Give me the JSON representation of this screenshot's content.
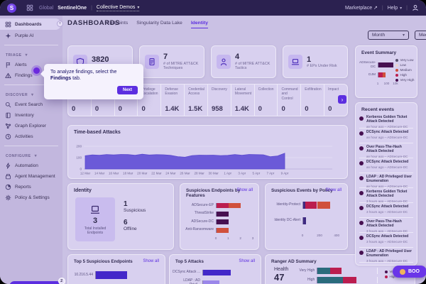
{
  "topbar": {
    "brand_initial": "S",
    "global_label": "Global",
    "account": "SentinelOne",
    "scope": "Collective Demos",
    "marketplace": "Marketplace",
    "help": "Help"
  },
  "sidebar": {
    "primary": [
      {
        "label": "Dashboards",
        "icon": "grid",
        "active": true
      },
      {
        "label": "Purple AI",
        "icon": "sparkle",
        "active": false
      }
    ],
    "sections": [
      {
        "title": "TRIAGE",
        "items": [
          {
            "label": "Alerts",
            "icon": "flag",
            "beacon": false
          },
          {
            "label": "Findings",
            "icon": "warning",
            "beacon": true
          }
        ]
      },
      {
        "title": "DISCOVER",
        "items": [
          {
            "label": "Event Search",
            "icon": "search",
            "beacon": false
          },
          {
            "label": "Inventory",
            "icon": "book",
            "beacon": false
          },
          {
            "label": "Graph Explorer",
            "icon": "graph",
            "beacon": false
          },
          {
            "label": "Activities",
            "icon": "clock",
            "beacon": false
          }
        ]
      },
      {
        "title": "CONFIGURE",
        "items": [
          {
            "label": "Automation",
            "icon": "bolt",
            "beacon": false
          },
          {
            "label": "Agent Management",
            "icon": "layers",
            "beacon": false
          },
          {
            "label": "Reports",
            "icon": "pie",
            "beacon": false
          },
          {
            "label": "Policy & Settings",
            "icon": "gear",
            "beacon": false
          }
        ]
      }
    ],
    "product_tour": {
      "label": "PRODUCT TOUR",
      "badge": "2"
    }
  },
  "header": {
    "title": "DASHBOARDS",
    "tabs": [
      {
        "label": "Endpoints"
      },
      {
        "label": "Singularity Data Lake"
      },
      {
        "label": "Identity"
      }
    ],
    "period_filter": "Month",
    "partial_filter": "Med"
  },
  "tour_tooltip": {
    "text": "To analyze findings, select the ",
    "bold": "Findings",
    "suffix": " tab.",
    "next": "Next"
  },
  "kpis": [
    {
      "value": "3820",
      "label": "# of Detections",
      "icon": "shield"
    },
    {
      "value": "7",
      "label": "# of MITRE ATT&CK Techniques",
      "icon": "document"
    },
    {
      "value": "4",
      "label": "# of MITRE ATT&CK Tactics",
      "icon": "person"
    },
    {
      "value": "1",
      "label": "# EPs Under Risk",
      "icon": "laptop"
    }
  ],
  "tactics_strip": {
    "columns": [
      {
        "label": "",
        "value": "0"
      },
      {
        "label": "",
        "value": "0"
      },
      {
        "label": "",
        "value": "0"
      },
      {
        "label": "Privilege Escalation",
        "value": "0"
      },
      {
        "label": "Defense Evasion",
        "value": "1.4K"
      },
      {
        "label": "Credential Access",
        "value": "1.5K"
      },
      {
        "label": "Discovery",
        "value": "958"
      },
      {
        "label": "Lateral Movement",
        "value": "1.4K"
      },
      {
        "label": "Collection",
        "value": "0"
      },
      {
        "label": "Command and Control",
        "value": "0"
      },
      {
        "label": "Exfiltration",
        "value": "0"
      },
      {
        "label": "Impact",
        "value": "0"
      }
    ]
  },
  "identity_panel": {
    "title": "Identity",
    "total_value": "3",
    "total_label": "Total Installed Endpoints",
    "stats": [
      {
        "value": "1",
        "label": "Suspicious"
      },
      {
        "value": "6",
        "label": "Offline"
      }
    ]
  },
  "panels": {
    "event_summary_title": "Event Summary",
    "recent_events_title": "Recent events",
    "time_title": "Time-based Attacks",
    "features_title": "Suspicious Endpoints by Features",
    "policy_title": "Suspicious Events by Policy",
    "top_endpoints_title": "Top 5 Suspicious Endpoints",
    "top_attacks_title": "Top 5 Attacks",
    "ranger_title": "Ranger AD Summary",
    "show_all": "Show all"
  },
  "ranger": {
    "health_label": "Health",
    "health_value": "47"
  },
  "recent_events": [
    {
      "title": "Kerberos Golden Ticket Attack Detected",
      "meta": "an hour ago – ADSecure-DC"
    },
    {
      "title": "DCSync Attack Detected",
      "meta": "an hour ago – ADSecure-DC"
    },
    {
      "title": "Over Pass-The-Hash Attack Detected",
      "meta": "an hour ago – ADSecure-DC"
    },
    {
      "title": "DCSync Attack Detected",
      "meta": "an hour ago – ADSecure-DC"
    },
    {
      "title": "LDAP : AD Privileged User Enumeration",
      "meta": "an hour ago – ADSecure-DC"
    },
    {
      "title": "Kerberos Golden Ticket Attack Detected",
      "meta": "3 hours ago – ADSecure-DC"
    },
    {
      "title": "DCSync Attack Detected",
      "meta": "3 hours ago – ADSecure-DC"
    },
    {
      "title": "Over Pass-The-Hash Attack Detected",
      "meta": "3 hours ago – ADSecure-DC"
    },
    {
      "title": "DCSync Attack Detected",
      "meta": "3 hours ago – ADSecure-DC"
    },
    {
      "title": "LDAP : AD Privileged User Enumeration",
      "meta": "3 hours ago – ADSecure-DC"
    }
  ],
  "floating_button": {
    "label": "BOO",
    "icon": "clap-hands"
  },
  "colors": {
    "accent": "#5c2ee0",
    "topbar": "#2b2150",
    "card": "#d8d0ef",
    "crimson": "#bb1d4f",
    "orange_red": "#d0503c",
    "dark_maroon": "#471051",
    "teal": "#2a6b7c",
    "area_purple": "#6553d6"
  },
  "chart_data": [
    {
      "type": "bar",
      "title": "Event Summary",
      "orientation": "horizontal",
      "x_scale": "log",
      "x_ticks": [
        "1",
        "100",
        "10k"
      ],
      "x_max": 10000,
      "legend": [
        {
          "label": "Very Low",
          "color": "#57506e"
        },
        {
          "label": "Low",
          "color": "#e9d2cf"
        },
        {
          "label": "Medium",
          "color": "#d0503c"
        },
        {
          "label": "High",
          "color": "#bb1d4f"
        },
        {
          "label": "Very High",
          "color": "#471051"
        }
      ],
      "rows": [
        {
          "category": "ADSecure-DC",
          "segments": [
            {
              "label": "Very High",
              "value": 3500,
              "color": "#471051"
            }
          ]
        },
        {
          "category": "DJM",
          "segments": [
            {
              "label": "High",
              "value": 12,
              "color": "#bb1d4f"
            },
            {
              "label": "Medium",
              "value": 28,
              "color": "#d0503c"
            }
          ]
        }
      ]
    },
    {
      "type": "area",
      "title": "Time-based Attacks",
      "color": "#6553d6",
      "ylim": [
        0,
        200
      ],
      "y_ticks": [
        0,
        100,
        200
      ],
      "x_tick_labels": [
        "12 Mar",
        "14 Mar",
        "16 Mar",
        "18 Mar",
        "20 Mar",
        "22 Mar",
        "24 Mar",
        "26 Mar",
        "28 Mar",
        "30 Mar",
        "1 Apr",
        "3 Apr",
        "5 Apr",
        "7 Apr",
        "9 Apr"
      ],
      "values": [
        116,
        124,
        121,
        127,
        124,
        128,
        127,
        121,
        130,
        123,
        126,
        125,
        120,
        109,
        104,
        118,
        122,
        121,
        122,
        118,
        120,
        127,
        121,
        128,
        126,
        125,
        108,
        115,
        139
      ]
    },
    {
      "type": "bar",
      "title": "Suspicious Endpoints by Features",
      "orientation": "horizontal",
      "x_ticks": [
        "0",
        "1",
        "2",
        "3"
      ],
      "x_max": 3,
      "rows": [
        {
          "category": "ADSecure-EP",
          "segments": [
            {
              "value": 1,
              "color": "#bb1d4f"
            },
            {
              "value": 1,
              "color": "#d0503c"
            }
          ]
        },
        {
          "category": "ThreatStrike",
          "segments": [
            {
              "value": 1,
              "color": "#471051"
            }
          ]
        },
        {
          "category": "ADSecure-DC",
          "segments": [
            {
              "value": 1,
              "color": "#471051"
            }
          ]
        },
        {
          "category": "Anti-Ransomware",
          "segments": [
            {
              "value": 1,
              "color": "#d0503c"
            }
          ]
        }
      ]
    },
    {
      "type": "bar",
      "title": "Suspicious Events by Policy",
      "orientation": "horizontal",
      "x_ticks": [
        "0",
        "200",
        "400"
      ],
      "x_max": 440,
      "rows": [
        {
          "category": "Identity-Protect",
          "segments": [
            {
              "value": 25,
              "color": "#3f2a82"
            },
            {
              "value": 140,
              "color": "#bb1d4f"
            },
            {
              "value": 155,
              "color": "#d0503c"
            }
          ]
        },
        {
          "category": "Identity DC-Alert",
          "segments": [
            {
              "value": 30,
              "color": "#3f2a82"
            }
          ]
        }
      ]
    },
    {
      "type": "bar",
      "title": "Top 5 Suspicious Endpoints",
      "orientation": "horizontal",
      "x_max": 2,
      "rows": [
        {
          "category": "10.216.5.44",
          "segments": [
            {
              "value": 1,
              "color": "#4328c9"
            }
          ]
        }
      ]
    },
    {
      "type": "bar",
      "title": "Top 5 Attacks",
      "orientation": "horizontal",
      "x_max": 100,
      "rows": [
        {
          "category": "DCSync Attack ...",
          "segments": [
            {
              "value": 55,
              "color": "#4328c9"
            }
          ]
        },
        {
          "category": "LDAP : AD Privil...",
          "segments": [
            {
              "value": 32,
              "color": "#9b87ea"
            }
          ]
        }
      ]
    },
    {
      "type": "bar",
      "title": "Ranger AD Summary",
      "orientation": "horizontal",
      "x_max": 100,
      "legend": [
        {
          "label": "Very High",
          "color": "#471051"
        },
        {
          "label": "High",
          "color": "#bb1d4f"
        }
      ],
      "rows": [
        {
          "category": "Very High",
          "segments": [
            {
              "value": 21,
              "color": "#2a6b7c"
            },
            {
              "value": 19,
              "color": "#bb1d4f"
            }
          ]
        },
        {
          "category": "High",
          "segments": [
            {
              "value": 43,
              "color": "#2a6b7c"
            },
            {
              "value": 22,
              "color": "#bb1d4f"
            }
          ]
        }
      ]
    }
  ]
}
